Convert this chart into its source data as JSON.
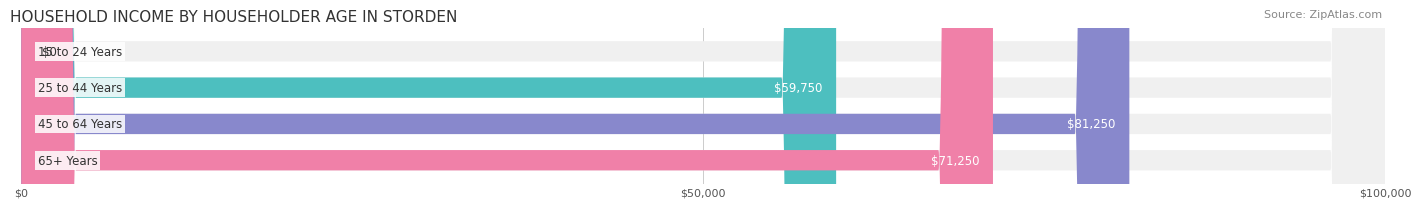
{
  "title": "HOUSEHOLD INCOME BY HOUSEHOLDER AGE IN STORDEN",
  "source": "Source: ZipAtlas.com",
  "categories": [
    "15 to 24 Years",
    "25 to 44 Years",
    "45 to 64 Years",
    "65+ Years"
  ],
  "values": [
    0,
    59750,
    81250,
    71250
  ],
  "bar_colors": [
    "#d8a8d8",
    "#4dbfbf",
    "#8888cc",
    "#f080a8"
  ],
  "bar_bg_color": "#f0f0f0",
  "value_labels": [
    "$0",
    "$59,750",
    "$81,250",
    "$71,250"
  ],
  "xlim": [
    0,
    100000
  ],
  "xticks": [
    0,
    50000,
    100000
  ],
  "xtick_labels": [
    "$0",
    "$50,000",
    "$100,000"
  ],
  "title_fontsize": 11,
  "source_fontsize": 8,
  "label_fontsize": 8.5,
  "value_fontsize": 8.5,
  "bar_height": 0.55,
  "background_color": "#ffffff"
}
